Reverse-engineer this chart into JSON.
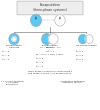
{
  "title": "Encapsulation\n(three-phase systems)",
  "top_box_color": "#eeeeee",
  "coacervate_color": "#5bc8f5",
  "outline_color": "#aaaaaa",
  "line_color": "#666666",
  "text_color": "#333333",
  "branch_labels": [
    "Encapsulation\ncomplete",
    "Encapsulation\npartial",
    "No encapsulation"
  ],
  "left_vars": [
    "β₁ = 0",
    "β₂ = 0",
    "β₃ = 0"
  ],
  "mid_eq1": "Δγ = γ₂₃ - γ₁₃ - γ₁₂",
  "mid_eq2": "Δβᵢ = 0",
  "mid_eq3": "Ωᵢ = ω₁γ₁ + ω₂γ₂ + ω₃γ₃",
  "mid_vars": [
    "β₁ > 0",
    "β₂ = 0",
    "β₃ = 0"
  ],
  "right_vars": [
    "β₁ > 0",
    "β₂ > 0",
    "β₃ > 0"
  ],
  "bottom_text": "when phase 2 completely wets phase 1\nand phase 3, there is no encapsulation",
  "footer_left": "1.1 solvent material\n1.2 system\nenrichment",
  "footer_right": "is providing additional\ninterfacial tension",
  "background": "#ffffff"
}
